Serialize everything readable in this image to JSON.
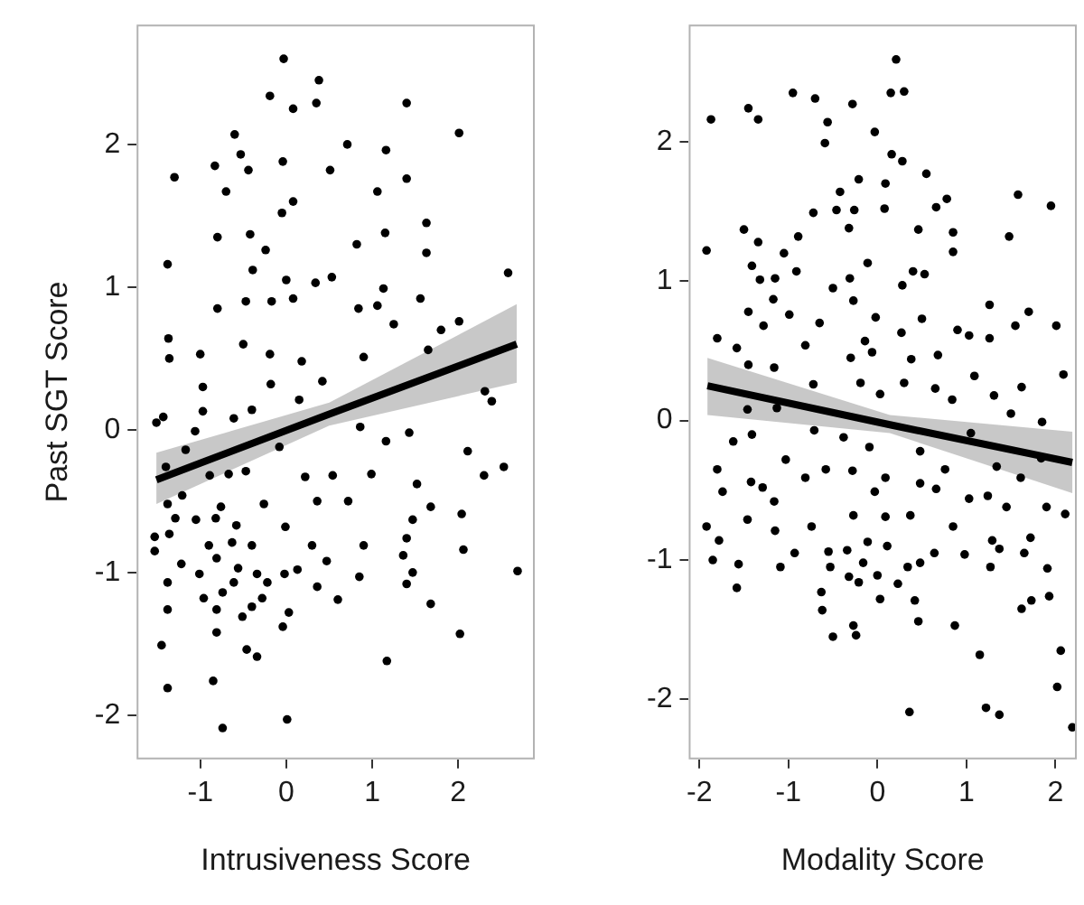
{
  "chart_data": [
    {
      "type": "scatter",
      "xlabel": "Intrusiveness Score",
      "ylabel": "Past SGT Score",
      "xlim": [
        -1.74,
        2.89
      ],
      "ylim": [
        -2.31,
        2.84
      ],
      "xticks": [
        -1,
        0,
        1,
        2
      ],
      "yticks": [
        -2,
        -1,
        0,
        1,
        2
      ],
      "grid": false,
      "legend": false,
      "series": [
        {
          "color": "#000000",
          "marker": "circle",
          "x": [
            -0.03,
            -0.19,
            0.38,
            0.35,
            0.08,
            1.4,
            -0.6,
            2.01,
            0.71,
            1.16,
            -0.83,
            -0.53,
            -1.3,
            -0.04,
            -0.44,
            0.51,
            1.06,
            1.4,
            -0.7,
            0.08,
            -0.05,
            -0.8,
            -0.42,
            -0.24,
            -1.38,
            1.15,
            1.63,
            0.82,
            1.63,
            -0.39,
            0.0,
            0.53,
            1.13,
            0.34,
            2.58,
            -0.8,
            -0.47,
            -0.17,
            0.08,
            0.84,
            1.06,
            1.56,
            2.01,
            1.25,
            -1.37,
            -1.36,
            -1.0,
            -0.5,
            -0.19,
            0.18,
            0.42,
            0.9,
            1.65,
            1.8,
            -0.18,
            -0.97,
            2.31,
            2.39,
            -1.51,
            -1.43,
            -1.06,
            -0.97,
            -0.61,
            -0.4,
            -0.08,
            0.15,
            0.86,
            1.43,
            1.16,
            2.11,
            -1.17,
            -1.4,
            -0.89,
            -0.67,
            -0.47,
            0.22,
            0.54,
            0.99,
            0.36,
            0.72,
            -1.21,
            -1.38,
            -0.76,
            -0.26,
            1.52,
            2.3,
            2.53,
            1.68,
            1.47,
            -1.29,
            -1.05,
            -0.82,
            -0.58,
            -0.01,
            2.04,
            -1.53,
            -1.36,
            -0.9,
            -0.63,
            -0.4,
            0.3,
            0.9,
            1.4,
            2.06,
            -1.53,
            -1.22,
            -1.01,
            -0.81,
            -0.56,
            -0.34,
            -0.02,
            0.13,
            0.47,
            0.85,
            1.36,
            1.47,
            2.69,
            -1.38,
            -0.61,
            -0.22,
            0.36,
            1.4,
            -0.96,
            -0.74,
            -0.28,
            0.6,
            -1.38,
            -0.81,
            -0.51,
            -0.4,
            0.03,
            1.68,
            -0.04,
            -1.45,
            -0.81,
            -0.46,
            -0.34,
            2.02,
            1.17,
            -0.85,
            -1.38,
            0.01,
            -0.74
          ],
          "values": [
            2.6,
            2.34,
            2.45,
            2.29,
            2.25,
            2.29,
            2.07,
            2.08,
            2.0,
            1.96,
            1.85,
            1.93,
            1.77,
            1.88,
            1.82,
            1.82,
            1.67,
            1.76,
            1.67,
            1.6,
            1.52,
            1.35,
            1.37,
            1.26,
            1.16,
            1.38,
            1.45,
            1.3,
            1.24,
            1.12,
            1.05,
            1.07,
            0.99,
            1.03,
            1.1,
            0.85,
            0.9,
            0.9,
            0.92,
            0.85,
            0.87,
            0.92,
            0.76,
            0.74,
            0.64,
            0.5,
            0.53,
            0.6,
            0.53,
            0.48,
            0.34,
            0.51,
            0.56,
            0.7,
            0.32,
            0.3,
            0.27,
            0.2,
            0.05,
            0.09,
            -0.01,
            0.13,
            0.08,
            0.14,
            -0.12,
            0.21,
            0.02,
            -0.02,
            -0.08,
            -0.15,
            -0.14,
            -0.26,
            -0.32,
            -0.31,
            -0.29,
            -0.33,
            -0.32,
            -0.31,
            -0.5,
            -0.5,
            -0.46,
            -0.52,
            -0.54,
            -0.52,
            -0.38,
            -0.32,
            -0.26,
            -0.54,
            -0.63,
            -0.62,
            -0.63,
            -0.62,
            -0.67,
            -0.68,
            -0.59,
            -0.75,
            -0.73,
            -0.81,
            -0.79,
            -0.81,
            -0.81,
            -0.81,
            -0.76,
            -0.84,
            -0.85,
            -0.94,
            -1.01,
            -0.9,
            -0.97,
            -1.01,
            -1.01,
            -0.98,
            -0.92,
            -1.03,
            -0.88,
            -1.0,
            -0.99,
            -1.07,
            -1.07,
            -1.07,
            -1.1,
            -1.08,
            -1.18,
            -1.14,
            -1.18,
            -1.19,
            -1.26,
            -1.26,
            -1.31,
            -1.24,
            -1.28,
            -1.22,
            -1.38,
            -1.51,
            -1.42,
            -1.54,
            -1.59,
            -1.43,
            -1.62,
            -1.76,
            -1.81,
            -2.03,
            -2.09
          ]
        },
        {
          "type": "line",
          "color": "#000000",
          "marker": "none",
          "x": [
            -1.51,
            0.5,
            2.68
          ],
          "values": [
            -0.35,
            0.11,
            0.6
          ],
          "lower": [
            -0.52,
            0.03,
            0.33
          ],
          "upper": [
            -0.16,
            0.19,
            0.88
          ]
        }
      ]
    },
    {
      "type": "scatter",
      "xlabel": "Modality Score",
      "xlim": [
        -2.12,
        2.24
      ],
      "ylim": [
        -2.43,
        2.84
      ],
      "xticks": [
        -2,
        -1,
        0,
        1,
        2
      ],
      "yticks": [
        -2,
        -1,
        0,
        1,
        2
      ],
      "grid": false,
      "legend": false,
      "series": [
        {
          "color": "#000000",
          "marker": "circle",
          "x": [
            0.21,
            -0.95,
            -0.7,
            0.15,
            0.3,
            -1.45,
            -1.34,
            -1.87,
            -0.28,
            -0.56,
            -0.59,
            -0.03,
            0.16,
            0.28,
            0.55,
            -0.21,
            0.09,
            -0.42,
            0.78,
            1.58,
            1.95,
            -0.46,
            -0.26,
            0.08,
            -0.72,
            0.66,
            -1.5,
            -0.89,
            -1.34,
            -0.32,
            0.46,
            0.85,
            1.48,
            -1.92,
            0.85,
            -1.05,
            -1.41,
            -0.91,
            -0.11,
            0.4,
            0.53,
            -0.31,
            -1.32,
            -1.15,
            -0.5,
            0.28,
            -0.27,
            -1.45,
            -1.17,
            -0.99,
            1.26,
            1.7,
            -0.02,
            0.5,
            -0.65,
            -1.28,
            1.55,
            2.01,
            0.9,
            1.03,
            0.27,
            -1.8,
            -0.14,
            -0.81,
            -1.58,
            1.26,
            -0.06,
            0.68,
            -0.3,
            0.38,
            -1.16,
            -1.45,
            2.09,
            1.09,
            -0.72,
            1.62,
            0.3,
            0.65,
            1.31,
            0.84,
            -0.19,
            0.03,
            1.5,
            1.85,
            -1.46,
            -1.13,
            -1.41,
            -1.62,
            -0.71,
            -0.38,
            -0.09,
            0.48,
            1.05,
            1.84,
            -1.8,
            -1.03,
            -0.58,
            -0.28,
            0.09,
            0.76,
            1.34,
            1.61,
            -1.74,
            -1.42,
            -1.29,
            -0.81,
            -0.03,
            0.48,
            0.66,
            1.03,
            1.24,
            1.45,
            1.9,
            2.11,
            -1.16,
            -0.27,
            0.09,
            0.37,
            0.85,
            -1.92,
            -1.46,
            -1.78,
            -1.15,
            -0.74,
            -0.93,
            -0.55,
            -0.34,
            -0.11,
            0.11,
            0.64,
            1.29,
            1.37,
            1.72,
            -1.85,
            -1.56,
            -1.09,
            0.98,
            1.27,
            1.65,
            1.91,
            -0.53,
            -0.16,
            0.0,
            0.34,
            0.48,
            -0.32,
            -0.21,
            0.23,
            -1.58,
            1.93,
            -0.63,
            0.03,
            0.42,
            1.73,
            1.62,
            -0.62,
            0.46,
            0.87,
            -0.27,
            -0.5,
            -0.24,
            1.15,
            2.06,
            2.02,
            0.36,
            1.22,
            1.37,
            2.19
          ],
          "values": [
            2.59,
            2.35,
            2.31,
            2.35,
            2.36,
            2.24,
            2.16,
            2.16,
            2.27,
            2.14,
            1.99,
            2.07,
            1.91,
            1.86,
            1.77,
            1.73,
            1.7,
            1.64,
            1.59,
            1.62,
            1.54,
            1.51,
            1.51,
            1.52,
            1.49,
            1.53,
            1.37,
            1.32,
            1.28,
            1.38,
            1.37,
            1.35,
            1.32,
            1.22,
            1.21,
            1.2,
            1.11,
            1.07,
            1.13,
            1.07,
            1.05,
            1.02,
            1.01,
            1.02,
            0.95,
            0.97,
            0.86,
            0.78,
            0.87,
            0.76,
            0.83,
            0.78,
            0.74,
            0.73,
            0.7,
            0.68,
            0.68,
            0.68,
            0.65,
            0.61,
            0.63,
            0.59,
            0.57,
            0.54,
            0.52,
            0.59,
            0.49,
            0.47,
            0.45,
            0.44,
            0.38,
            0.4,
            0.33,
            0.32,
            0.26,
            0.24,
            0.27,
            0.23,
            0.18,
            0.15,
            0.27,
            0.19,
            0.05,
            -0.01,
            0.08,
            0.09,
            -0.1,
            -0.15,
            -0.07,
            -0.12,
            -0.19,
            -0.22,
            -0.09,
            -0.27,
            -0.35,
            -0.28,
            -0.35,
            -0.36,
            -0.41,
            -0.35,
            -0.33,
            -0.41,
            -0.51,
            -0.44,
            -0.48,
            -0.41,
            -0.51,
            -0.45,
            -0.49,
            -0.56,
            -0.54,
            -0.62,
            -0.62,
            -0.67,
            -0.58,
            -0.68,
            -0.69,
            -0.68,
            -0.76,
            -0.76,
            -0.71,
            -0.86,
            -0.79,
            -0.76,
            -0.95,
            -0.94,
            -0.93,
            -0.87,
            -0.9,
            -0.95,
            -0.86,
            -0.92,
            -0.84,
            -1.0,
            -1.03,
            -1.05,
            -0.96,
            -1.05,
            -0.95,
            -1.06,
            -1.05,
            -1.02,
            -1.11,
            -1.05,
            -1.02,
            -1.12,
            -1.16,
            -1.17,
            -1.2,
            -1.26,
            -1.23,
            -1.28,
            -1.29,
            -1.29,
            -1.35,
            -1.36,
            -1.44,
            -1.47,
            -1.47,
            -1.55,
            -1.54,
            -1.68,
            -1.65,
            -1.91,
            -2.09,
            -2.06,
            -2.11,
            -2.2
          ]
        },
        {
          "type": "line",
          "color": "#000000",
          "marker": "none",
          "x": [
            -1.91,
            0.14,
            2.19
          ],
          "values": [
            0.25,
            -0.03,
            -0.3
          ],
          "lower": [
            0.04,
            -0.09,
            -0.52
          ],
          "upper": [
            0.45,
            0.04,
            -0.08
          ]
        }
      ]
    }
  ]
}
